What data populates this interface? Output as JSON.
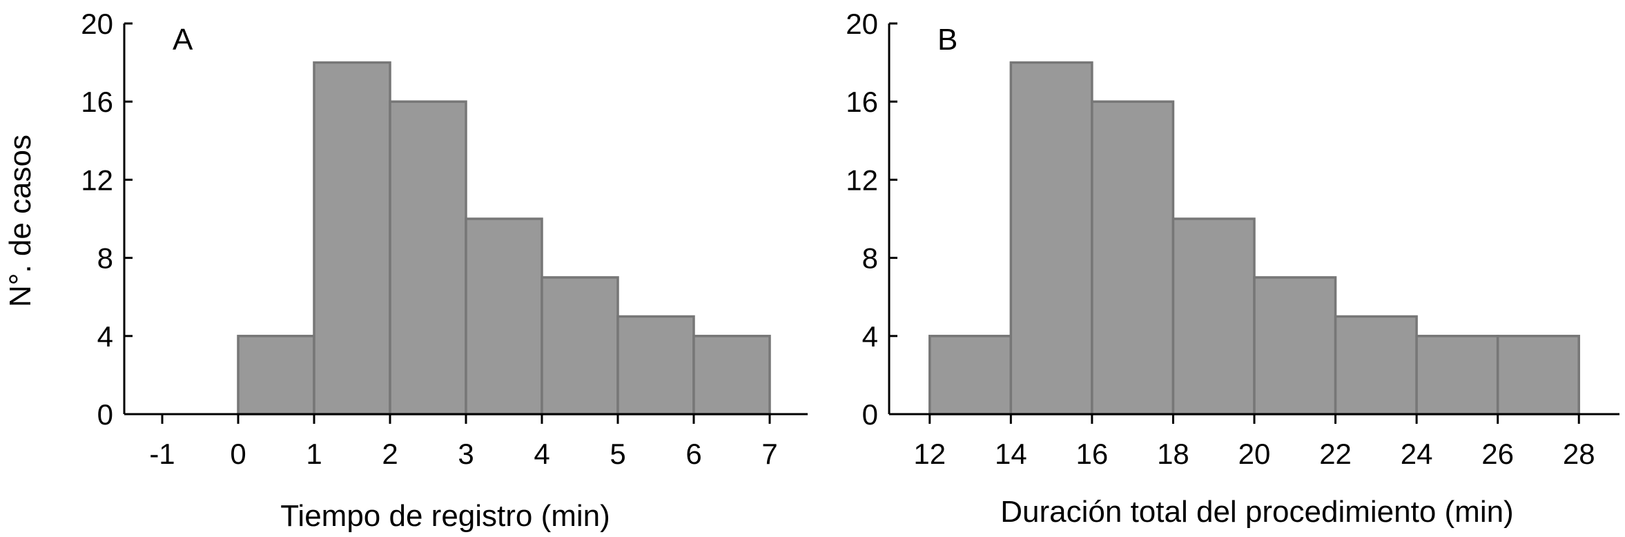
{
  "chart_data": [
    {
      "type": "bar",
      "panel_label": "A",
      "xlabel": "Tiempo de registro (min)",
      "ylabel": "N°. de casos",
      "xlim": [
        -1.5,
        7.5
      ],
      "ylim": [
        0,
        20
      ],
      "x_ticks": [
        -1,
        0,
        1,
        2,
        3,
        4,
        5,
        6,
        7
      ],
      "y_ticks": [
        0,
        4,
        8,
        12,
        16,
        20
      ],
      "bin_width": 1,
      "bins": [
        {
          "start": 0,
          "end": 1,
          "value": 4
        },
        {
          "start": 1,
          "end": 2,
          "value": 18
        },
        {
          "start": 2,
          "end": 3,
          "value": 16
        },
        {
          "start": 3,
          "end": 4,
          "value": 10
        },
        {
          "start": 4,
          "end": 5,
          "value": 7
        },
        {
          "start": 5,
          "end": 6,
          "value": 5
        },
        {
          "start": 6,
          "end": 7,
          "value": 4
        }
      ],
      "bar_color": "#999999",
      "grid": false
    },
    {
      "type": "bar",
      "panel_label": "B",
      "xlabel": "Duración total del procedimiento (min)",
      "ylabel": "",
      "xlim": [
        11,
        29
      ],
      "ylim": [
        0,
        20
      ],
      "x_ticks": [
        12,
        14,
        16,
        18,
        20,
        22,
        24,
        26,
        28
      ],
      "y_ticks": [
        0,
        4,
        8,
        12,
        16,
        20
      ],
      "bin_width": 2,
      "bins": [
        {
          "start": 12,
          "end": 14,
          "value": 4
        },
        {
          "start": 14,
          "end": 16,
          "value": 18
        },
        {
          "start": 16,
          "end": 18,
          "value": 16
        },
        {
          "start": 18,
          "end": 20,
          "value": 10
        },
        {
          "start": 20,
          "end": 22,
          "value": 7
        },
        {
          "start": 22,
          "end": 24,
          "value": 5
        },
        {
          "start": 24,
          "end": 26,
          "value": 4
        },
        {
          "start": 26,
          "end": 28,
          "value": 4
        }
      ],
      "bar_color": "#999999",
      "grid": false
    }
  ]
}
